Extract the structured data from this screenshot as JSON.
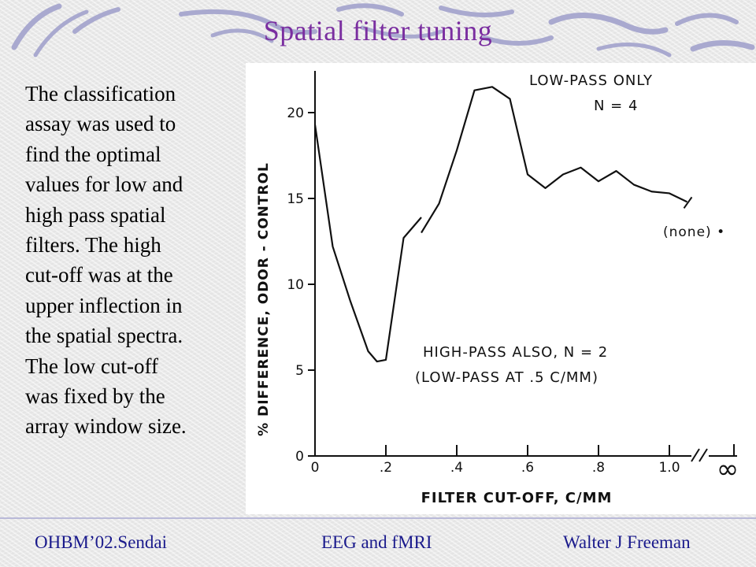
{
  "slide": {
    "title": "Spatial filter tuning",
    "body": "The classification\nassay was used to\nfind the optimal\nvalues for low and\nhigh pass spatial\nfilters.  The high\ncut-off was at the\nupper inflection in\nthe spatial spectra.\nThe low cut-off\nwas fixed by the\narray window size.",
    "footer": {
      "left": "OHBM’02.Sendai",
      "center": "EEG and fMRI",
      "right": "Walter J Freeman"
    },
    "colors": {
      "title": "#7a2ea0",
      "footer": "#1a1a8c",
      "decoration": "#a9a9cf"
    }
  },
  "chart_data": {
    "type": "line",
    "title": "",
    "xlabel": "FILTER CUT-OFF, C/MM",
    "ylabel": "% DIFFERENCE, ODOR - CONTROL",
    "xlim": [
      0,
      1.1
    ],
    "ylim": [
      0,
      22
    ],
    "x_ticks": [
      "0",
      ".2",
      ".4",
      ".6",
      ".8",
      "1.0"
    ],
    "x_tick_values": [
      0,
      0.2,
      0.4,
      0.6,
      0.8,
      1.0
    ],
    "x_infinity_label": "∞",
    "y_ticks": [
      "0",
      "5",
      "10",
      "15",
      "20"
    ],
    "y_tick_values": [
      0,
      5,
      10,
      15,
      20
    ],
    "grid": false,
    "series": [
      {
        "name": "LOW-PASS ONLY",
        "values_x": [
          0.3,
          0.35,
          0.4,
          0.45,
          0.5,
          0.55,
          0.6,
          0.65,
          0.7,
          0.75,
          0.8,
          0.85,
          0.9,
          0.95,
          1.0,
          1.05
        ],
        "values_y": [
          13.0,
          14.7,
          17.8,
          21.3,
          21.5,
          20.8,
          16.4,
          15.6,
          16.4,
          16.8,
          16.0,
          16.6,
          15.8,
          15.4,
          15.3,
          14.8
        ]
      },
      {
        "name": "HIGH-PASS ALSO",
        "values_x": [
          0.0,
          0.05,
          0.1,
          0.15,
          0.175,
          0.2,
          0.25,
          0.3
        ],
        "values_y": [
          19.3,
          12.2,
          9.0,
          6.1,
          5.5,
          5.6,
          12.7,
          13.9
        ]
      }
    ],
    "annotations": [
      {
        "text": "LOW-PASS ONLY"
      },
      {
        "text": "N = 4"
      },
      {
        "text": "(none) •"
      },
      {
        "text": "HIGH-PASS ALSO, N = 2"
      },
      {
        "text": "(LOW-PASS AT .5 C/MM)"
      }
    ]
  }
}
